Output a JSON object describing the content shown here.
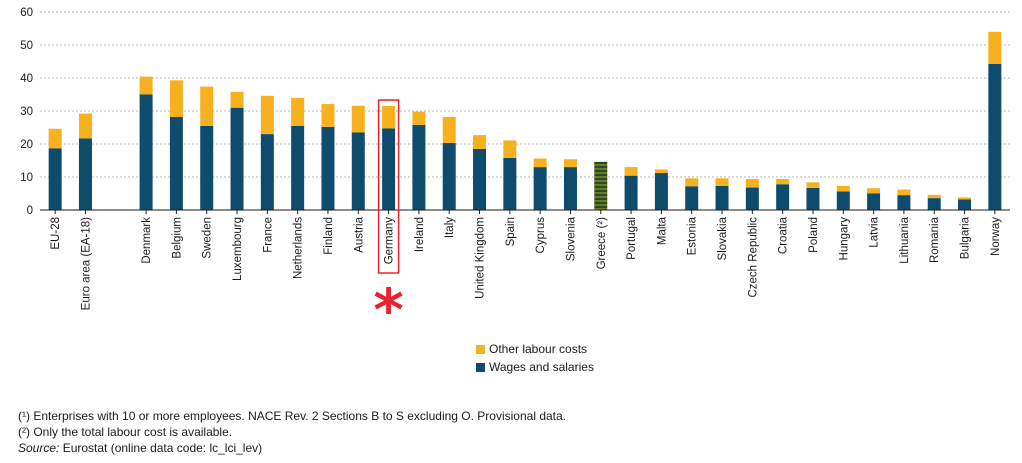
{
  "chart_data": {
    "type": "bar",
    "stacked": true,
    "categories": [
      "EU-28",
      "Euro area (EA-18)",
      "",
      "Denmark",
      "Belgium",
      "Sweden",
      "Luxembourg",
      "France",
      "Netherlands",
      "Finland",
      "Austria",
      "Germany",
      "Ireland",
      "Italy",
      "United Kingdom",
      "Spain",
      "Cyprus",
      "Slovenia",
      "Greece (²)",
      "Portugal",
      "Malta",
      "Estonia",
      "Slovakia",
      "Czech Republic",
      "Croatia",
      "Poland",
      "Hungary",
      "Latvia",
      "Lithuania",
      "Romania",
      "Bulgaria",
      "Norway"
    ],
    "series": [
      {
        "name": "Wages and salaries",
        "color": "#0e4c6e",
        "values": [
          18.7,
          21.7,
          null,
          35.0,
          28.2,
          25.5,
          31.0,
          23.0,
          25.5,
          25.2,
          23.5,
          24.7,
          25.8,
          20.3,
          18.5,
          15.8,
          13.0,
          13.0,
          null,
          10.4,
          11.2,
          7.2,
          7.3,
          6.8,
          7.8,
          6.7,
          5.6,
          5.0,
          4.5,
          3.6,
          3.2,
          44.3
        ]
      },
      {
        "name": "Other labour costs",
        "color": "#f7b11f",
        "values": [
          5.9,
          7.5,
          null,
          5.4,
          11.1,
          11.9,
          4.8,
          11.6,
          8.5,
          6.9,
          8.1,
          6.8,
          4.0,
          7.9,
          4.2,
          5.3,
          2.6,
          2.4,
          null,
          2.6,
          1.1,
          2.4,
          2.3,
          2.6,
          1.6,
          1.7,
          1.7,
          1.6,
          1.7,
          1.0,
          0.6,
          9.7
        ]
      }
    ],
    "totals_only": {
      "Greece (²)": 14.6
    },
    "ylim": [
      0,
      60
    ],
    "yticks": [
      0,
      10,
      20,
      30,
      40,
      50,
      60
    ],
    "grid": true,
    "highlight": "Germany",
    "highlight_color": "#e8222e",
    "xlabel": "",
    "ylabel": "",
    "title": ""
  },
  "legend": {
    "items": [
      {
        "label": "Other labour costs",
        "color": "#f7b11f"
      },
      {
        "label": "Wages and salaries",
        "color": "#0e4c6e"
      }
    ]
  },
  "notes": {
    "note1": "(¹) Enterprises with 10 or more employees. NACE Rev. 2 Sections B to S excluding O. Provisional data.",
    "note2": "(²) Only the total labour cost is available.",
    "source_label": "Source:",
    "source_text": " Eurostat (online data code: lc_lci_lev)"
  }
}
